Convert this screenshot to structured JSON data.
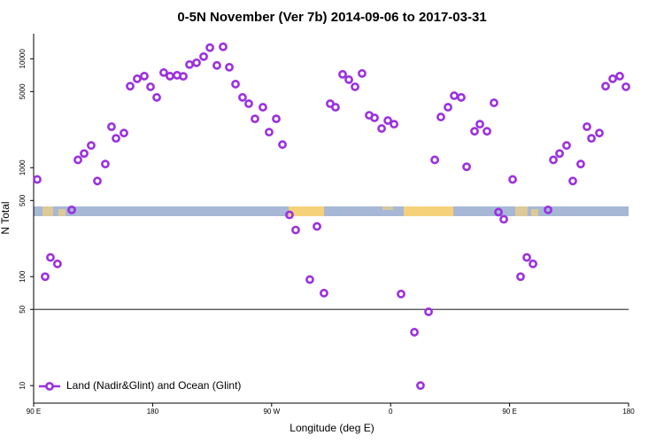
{
  "chart_data": {
    "type": "scatter",
    "title": "0-5N November (Ver 7b)   2014-09-06 to 2017-03-31",
    "x_label": "Longitude (deg E)",
    "y_label": "N Total",
    "log_y": true,
    "legend": "bottom-left",
    "reference_line": 50,
    "xlim": [
      90,
      540
    ],
    "xticks": [
      {
        "value": 90,
        "label": "90 E"
      },
      180,
      {
        "value": 270,
        "label": "90 W"
      },
      {
        "value": 360,
        "label": "0"
      },
      {
        "value": 450,
        "label": "90 E"
      },
      {
        "value": 540,
        "label": "180"
      }
    ],
    "ylim": [
      6.9,
      17000
    ],
    "yticks": [
      10,
      50,
      100,
      500,
      1000,
      5000,
      10000
    ],
    "series": [
      {
        "name": "Land (Nadir&Glint) and Ocean (Glint)",
        "color": "#9b30e0",
        "x": [
          92.7,
          98.7,
          102.7,
          108,
          118.8,
          123.5,
          128.2,
          133.5,
          138.2,
          144.2,
          148.9,
          152.3,
          158.3,
          163,
          168.3,
          173.7,
          178.4,
          183.1,
          188.4,
          193.1,
          198.5,
          203.2,
          207.9,
          213.2,
          218.6,
          223.3,
          228.6,
          233.3,
          238,
          242.7,
          248,
          252.7,
          257.4,
          263.4,
          268.1,
          273.5,
          278.2,
          283.5,
          288.2,
          298.9,
          304.3,
          309.6,
          314.3,
          318.3,
          323.7,
          328.4,
          333.1,
          338.4,
          343.8,
          347.8,
          353.2,
          357.9,
          362.6,
          367.9,
          378,
          382.6,
          388.7,
          393.4,
          398,
          403.4,
          408.1,
          413.4,
          417.5,
          423.5,
          427.5,
          432.9,
          438.2,
          441.6,
          445.6,
          452.3,
          458.3,
          463,
          467.7,
          479.1,
          483.1,
          487.8,
          493.1,
          497.8,
          503.8,
          508.5,
          511.9,
          517.9,
          522.6,
          528,
          533.3,
          538
        ],
        "values": [
          780,
          100,
          150,
          131,
          410,
          1180,
          1350,
          1600,
          755,
          1080,
          2380,
          1860,
          2080,
          5600,
          6550,
          6930,
          5530,
          4420,
          7470,
          6930,
          7060,
          6900,
          8850,
          9190,
          10470,
          12650,
          8690,
          12880,
          8360,
          5850,
          4420,
          3870,
          2810,
          3590,
          2120,
          2810,
          1630,
          369,
          268,
          94,
          289,
          70.6,
          3870,
          3590,
          7200,
          6430,
          5530,
          7330,
          3030,
          2870,
          2290,
          2710,
          2510,
          69.3,
          30.9,
          10,
          47.6,
          1180,
          2920,
          3590,
          4580,
          4420,
          1020,
          2160,
          2510,
          2160,
          3940,
          391,
          336,
          780,
          100,
          150,
          131,
          410,
          1180,
          1350,
          1600,
          755,
          1080,
          2380,
          1860,
          2080,
          5600,
          6550,
          6930,
          5530
        ]
      }
    ]
  }
}
